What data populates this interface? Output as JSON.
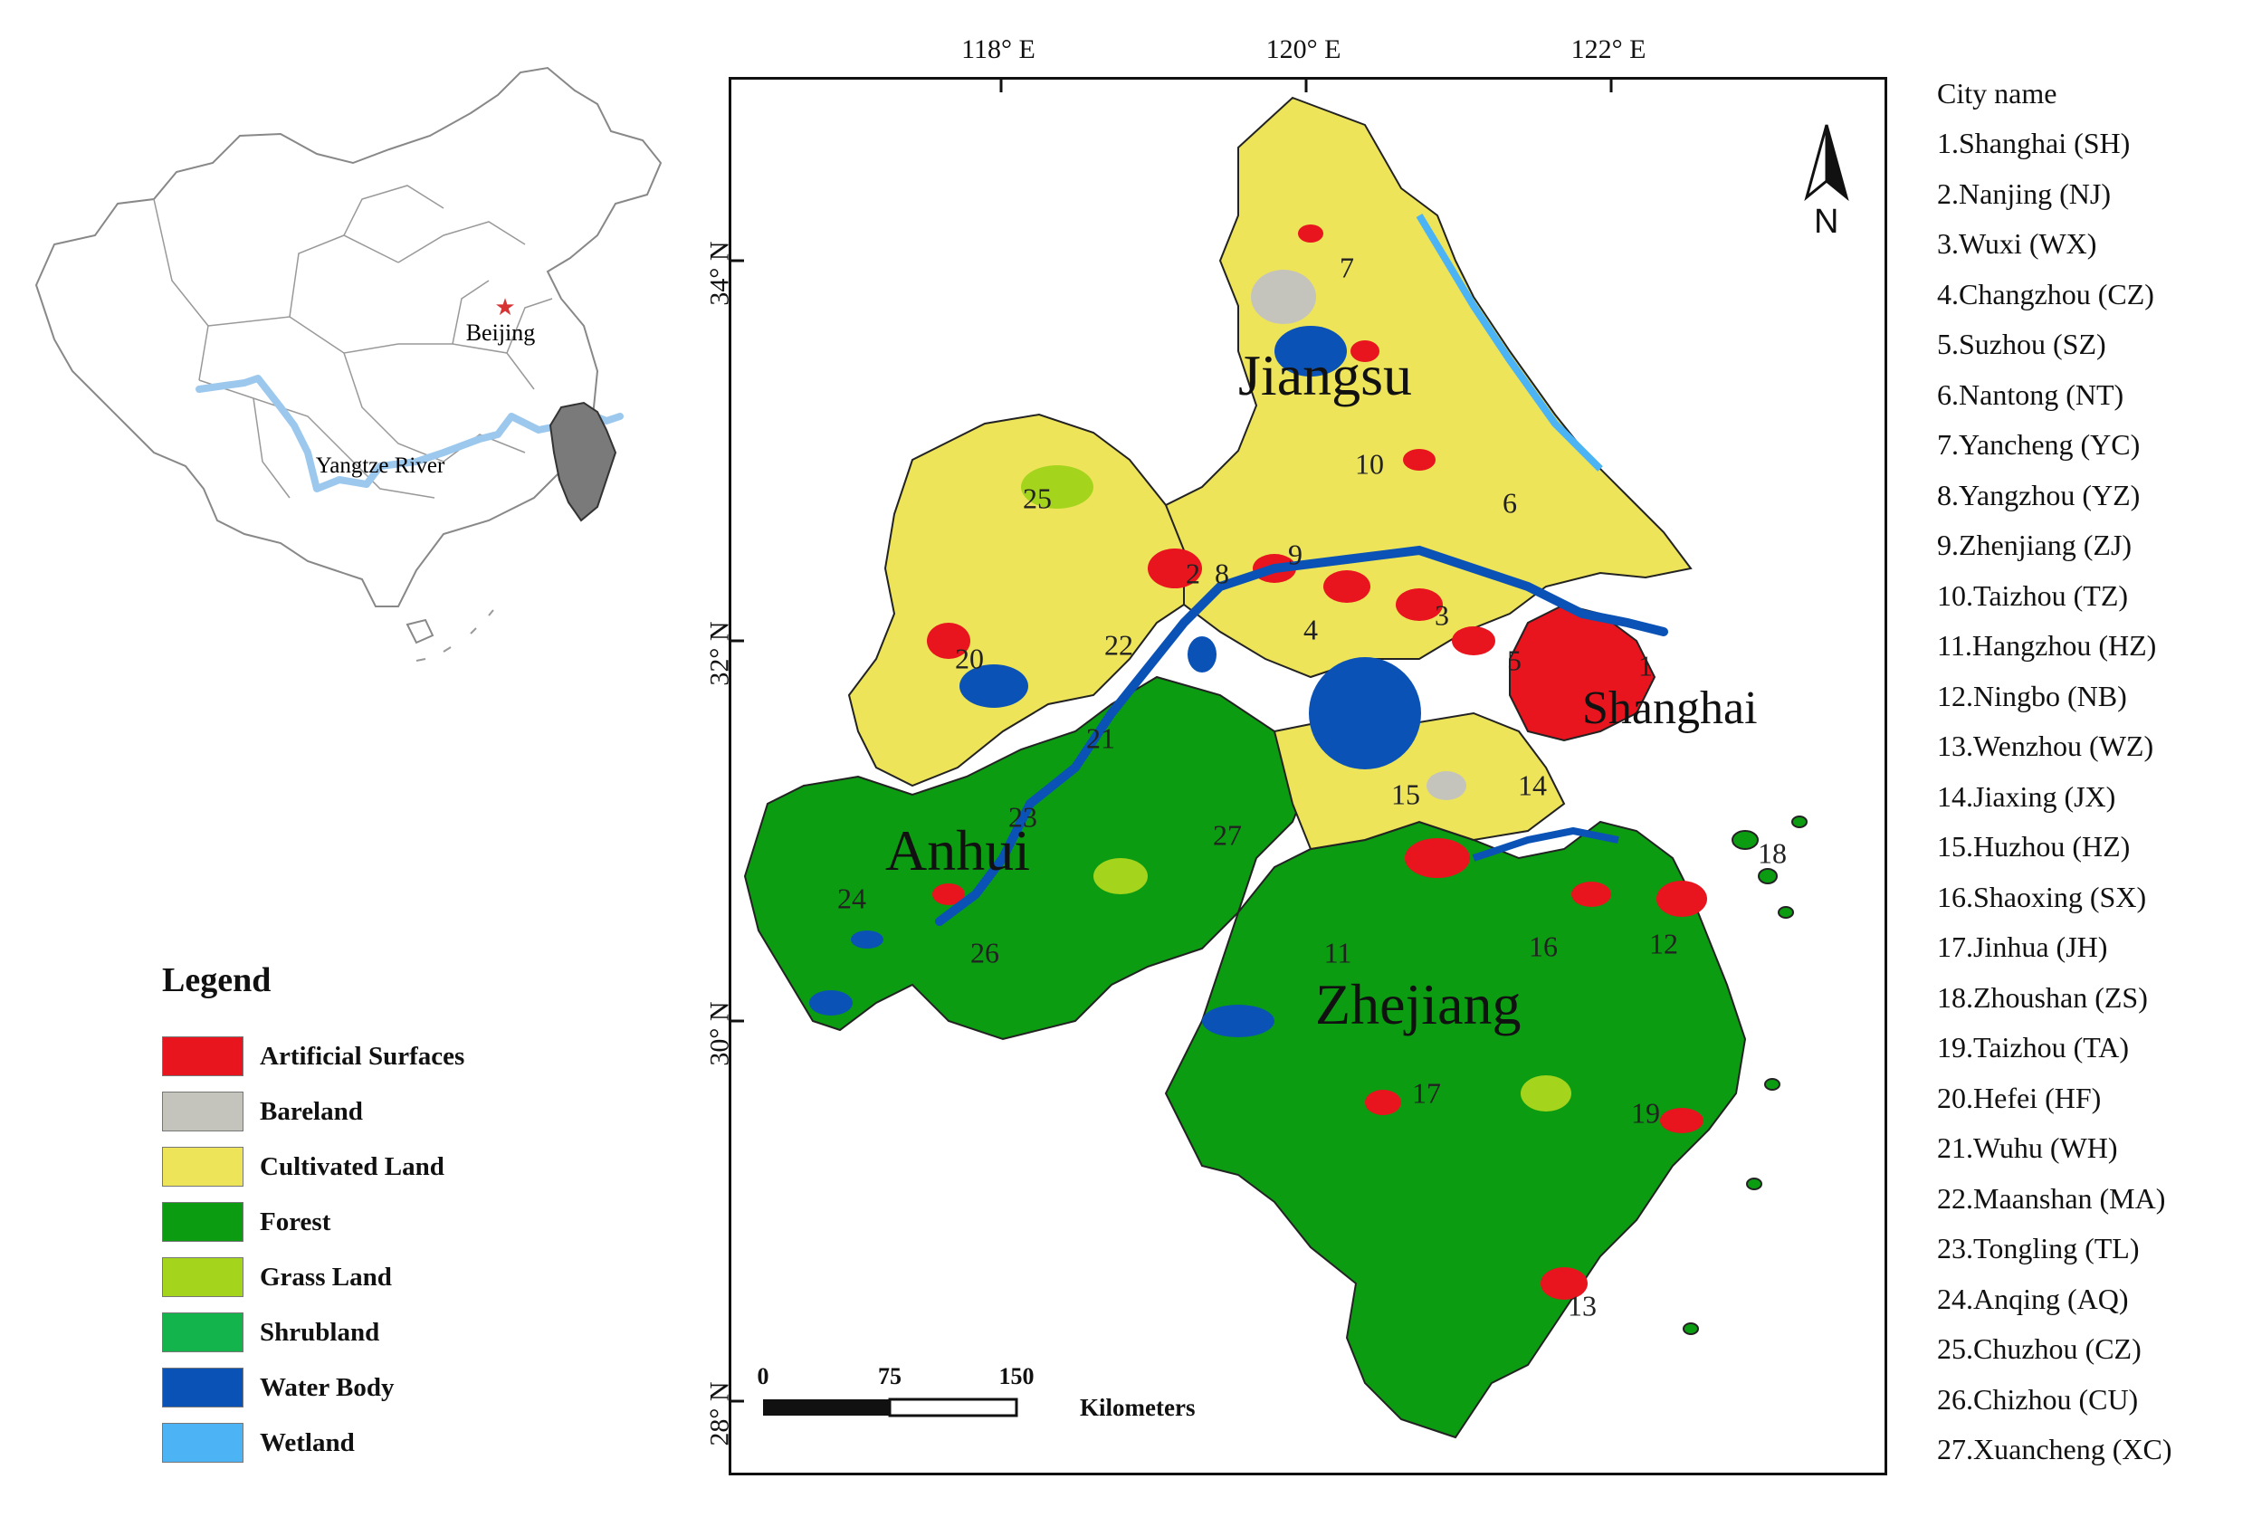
{
  "inset": {
    "capital_label": "Beijing",
    "river_label": "Yangtze   River",
    "colors": {
      "river": "#9cc8ee",
      "region": "#7a7a7a",
      "border": "#888888",
      "capital_star": "#d83333"
    }
  },
  "grid": {
    "longitudes": [
      "118° E",
      "120° E",
      "122° E"
    ],
    "latitudes": [
      "34° N",
      "32° N",
      "30° N",
      "28° N"
    ]
  },
  "provinces": [
    "Jiangsu",
    "Anhui",
    "Zhejiang",
    "Shanghai"
  ],
  "city_numbers": [
    "1",
    "2",
    "3",
    "4",
    "5",
    "6",
    "7",
    "8",
    "9",
    "10",
    "11",
    "12",
    "13",
    "14",
    "15",
    "16",
    "17",
    "18",
    "19",
    "20",
    "21",
    "22",
    "23",
    "24",
    "25",
    "26",
    "27"
  ],
  "north_arrow": {
    "letter": "N"
  },
  "scale_bar": {
    "ticks": [
      "0",
      "75",
      "150"
    ],
    "unit": "Kilometers"
  },
  "legend": {
    "title": "Legend",
    "items": [
      {
        "label": "Artificial Surfaces",
        "color": "#e8141e"
      },
      {
        "label": "Bareland",
        "color": "#c4c4bd"
      },
      {
        "label": "Cultivated Land",
        "color": "#ede45a"
      },
      {
        "label": "Forest",
        "color": "#0c9c12"
      },
      {
        "label": "Grass Land",
        "color": "#a4d41c"
      },
      {
        "label": "Shrubland",
        "color": "#14b44c"
      },
      {
        "label": "Water Body",
        "color": "#0a52b6"
      },
      {
        "label": "Wetland",
        "color": "#4cb4f4"
      }
    ]
  },
  "city_list": {
    "header": "City name",
    "items": [
      "1.Shanghai  (SH)",
      "2.Nanjing  (NJ)",
      "3.Wuxi  (WX)",
      "4.Changzhou  (CZ)",
      "5.Suzhou  (SZ)",
      "6.Nantong  (NT)",
      "7.Yancheng  (YC)",
      "8.Yangzhou  (YZ)",
      "9.Zhenjiang  (ZJ)",
      "10.Taizhou  (TZ)",
      "11.Hangzhou  (HZ)",
      "12.Ningbo  (NB)",
      "13.Wenzhou  (WZ)",
      "14.Jiaxing  (JX)",
      "15.Huzhou  (HZ)",
      "16.Shaoxing  (SX)",
      "17.Jinhua  (JH)",
      "18.Zhoushan  (ZS)",
      "19.Taizhou  (TA)",
      "20.Hefei  (HF)",
      "21.Wuhu  (WH)",
      "22.Maanshan  (MA)",
      "23.Tongling  (TL)",
      "24.Anqing  (AQ)",
      "25.Chuzhou  (CZ)",
      "26.Chizhou  (CU)",
      "27.Xuancheng  (XC)"
    ]
  }
}
